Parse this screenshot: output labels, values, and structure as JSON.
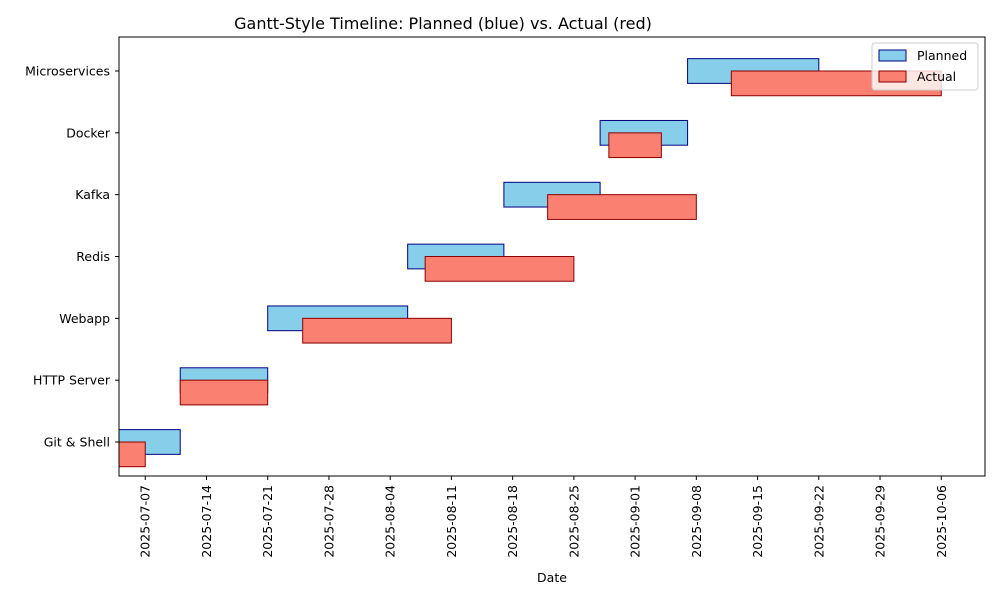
{
  "chart_data": {
    "type": "bar",
    "title": "Gantt-Style Timeline: Planned (blue) vs. Actual (red)",
    "xlabel": "Date",
    "ylabel": "",
    "x_ticks": [
      "2025-07-07",
      "2025-07-14",
      "2025-07-21",
      "2025-07-28",
      "2025-08-04",
      "2025-08-11",
      "2025-08-18",
      "2025-08-25",
      "2025-09-01",
      "2025-09-08",
      "2025-09-15",
      "2025-09-22",
      "2025-09-29",
      "2025-10-06"
    ],
    "xlim": [
      "2025-07-04",
      "2025-10-11"
    ],
    "categories": [
      "Git & Shell",
      "HTTP Server",
      "Webapp",
      "Redis",
      "Kafka",
      "Docker",
      "Microservices"
    ],
    "legend": {
      "placement": "top-right",
      "entries": [
        "Planned",
        "Actual"
      ]
    },
    "colors": {
      "planned_fill": "#87ceeb",
      "planned_edge": "#000080",
      "actual_fill": "#fa8072",
      "actual_edge": "#8b0000"
    },
    "series": [
      {
        "name": "Planned",
        "tasks": [
          {
            "task": "Git & Shell",
            "start": "2025-07-04",
            "end": "2025-07-11"
          },
          {
            "task": "HTTP Server",
            "start": "2025-07-11",
            "end": "2025-07-21"
          },
          {
            "task": "Webapp",
            "start": "2025-07-21",
            "end": "2025-08-06"
          },
          {
            "task": "Redis",
            "start": "2025-08-06",
            "end": "2025-08-17"
          },
          {
            "task": "Kafka",
            "start": "2025-08-17",
            "end": "2025-08-28"
          },
          {
            "task": "Docker",
            "start": "2025-08-28",
            "end": "2025-09-07"
          },
          {
            "task": "Microservices",
            "start": "2025-09-07",
            "end": "2025-09-22"
          }
        ]
      },
      {
        "name": "Actual",
        "tasks": [
          {
            "task": "Git & Shell",
            "start": "2025-07-04",
            "end": "2025-07-07"
          },
          {
            "task": "HTTP Server",
            "start": "2025-07-11",
            "end": "2025-07-21"
          },
          {
            "task": "Webapp",
            "start": "2025-07-25",
            "end": "2025-08-11"
          },
          {
            "task": "Redis",
            "start": "2025-08-08",
            "end": "2025-08-25"
          },
          {
            "task": "Kafka",
            "start": "2025-08-22",
            "end": "2025-09-08"
          },
          {
            "task": "Docker",
            "start": "2025-08-29",
            "end": "2025-09-04"
          },
          {
            "task": "Microservices",
            "start": "2025-09-12",
            "end": "2025-10-06"
          }
        ]
      }
    ]
  }
}
